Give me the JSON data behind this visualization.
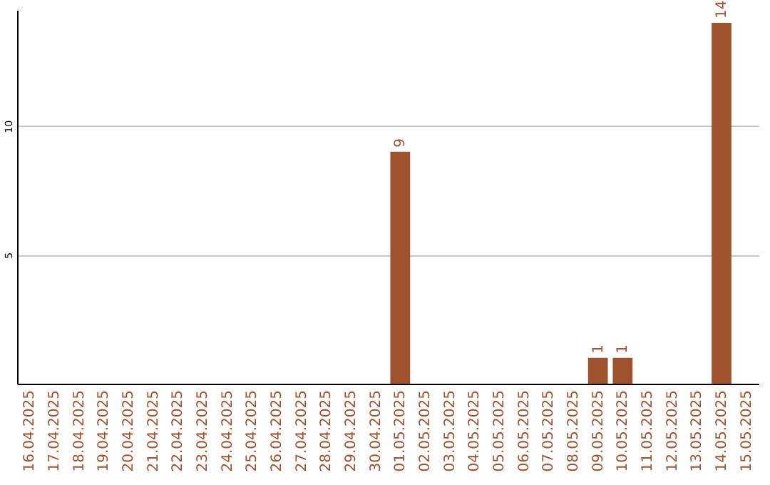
{
  "chart_data": {
    "type": "bar",
    "categories": [
      "16.04.2025",
      "17.04.2025",
      "18.04.2025",
      "19.04.2025",
      "20.04.2025",
      "21.04.2025",
      "22.04.2025",
      "23.04.2025",
      "24.04.2025",
      "25.04.2025",
      "26.04.2025",
      "27.04.2025",
      "28.04.2025",
      "29.04.2025",
      "30.04.2025",
      "01.05.2025",
      "02.05.2025",
      "03.05.2025",
      "04.05.2025",
      "05.05.2025",
      "06.05.2025",
      "07.05.2025",
      "08.05.2025",
      "09.05.2025",
      "10.05.2025",
      "11.05.2025",
      "12.05.2025",
      "13.05.2025",
      "14.05.2025",
      "15.05.2025"
    ],
    "values": [
      null,
      null,
      null,
      null,
      null,
      null,
      null,
      null,
      null,
      null,
      null,
      null,
      null,
      null,
      null,
      9,
      null,
      null,
      null,
      null,
      null,
      null,
      null,
      1,
      1,
      null,
      null,
      null,
      14,
      null
    ],
    "color": "#a0522d",
    "ylim": [
      0,
      14.5
    ],
    "yticks": [
      5,
      10
    ],
    "grid": "y",
    "data_labels": true
  }
}
